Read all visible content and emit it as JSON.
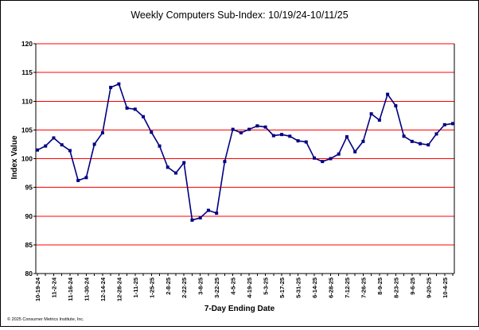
{
  "chart_data": {
    "type": "line",
    "title": "Weekly Computers Sub-Index: 10/19/24-10/11/25",
    "xlabel": "7-Day Ending Date",
    "ylabel": "Index Value",
    "ylim": [
      80,
      120
    ],
    "yticks": [
      80,
      85,
      90,
      95,
      100,
      105,
      110,
      115,
      120
    ],
    "grid": true,
    "legend": "none",
    "x_tick_labels": [
      "10-19-24",
      "11-2-24",
      "11-16-24",
      "11-30-24",
      "12-14-24",
      "12-28-24",
      "1-11-25",
      "1-25-25",
      "2-8-25",
      "2-22-25",
      "3-8-25",
      "3-22-25",
      "4-5-25",
      "4-19-25",
      "5-3-25",
      "5-17-25",
      "5-31-25",
      "6-14-25",
      "6-28-25",
      "7-12-25",
      "7-26-25",
      "8-9-25",
      "8-23-25",
      "9-6-25",
      "9-20-25",
      "10-4-25"
    ],
    "series": [
      {
        "values": [
          101.5,
          102.2,
          103.6,
          102.4,
          101.4,
          96.2,
          96.7,
          102.5,
          104.5,
          112.4,
          113.0,
          108.8,
          108.6,
          107.3,
          104.6,
          102.2,
          98.5,
          97.5,
          99.3,
          89.3,
          89.7,
          91.0,
          90.5,
          99.5,
          105.1,
          104.5,
          105.1,
          105.7,
          105.5,
          104.0,
          104.2,
          103.9,
          103.1,
          102.9,
          100.1,
          99.5,
          100.0,
          100.8,
          103.8,
          101.2,
          103.0,
          107.8,
          106.7,
          111.2,
          109.2,
          103.9,
          103.0,
          102.6,
          102.4,
          104.3,
          105.9,
          106.1
        ],
        "color": "#000080"
      }
    ],
    "colors": {
      "grid": "#ff0000",
      "line": "#000080",
      "frame": "#000000"
    }
  },
  "footer": {
    "copyright": "© 2025 Consumer Metrics Institute, Inc."
  }
}
